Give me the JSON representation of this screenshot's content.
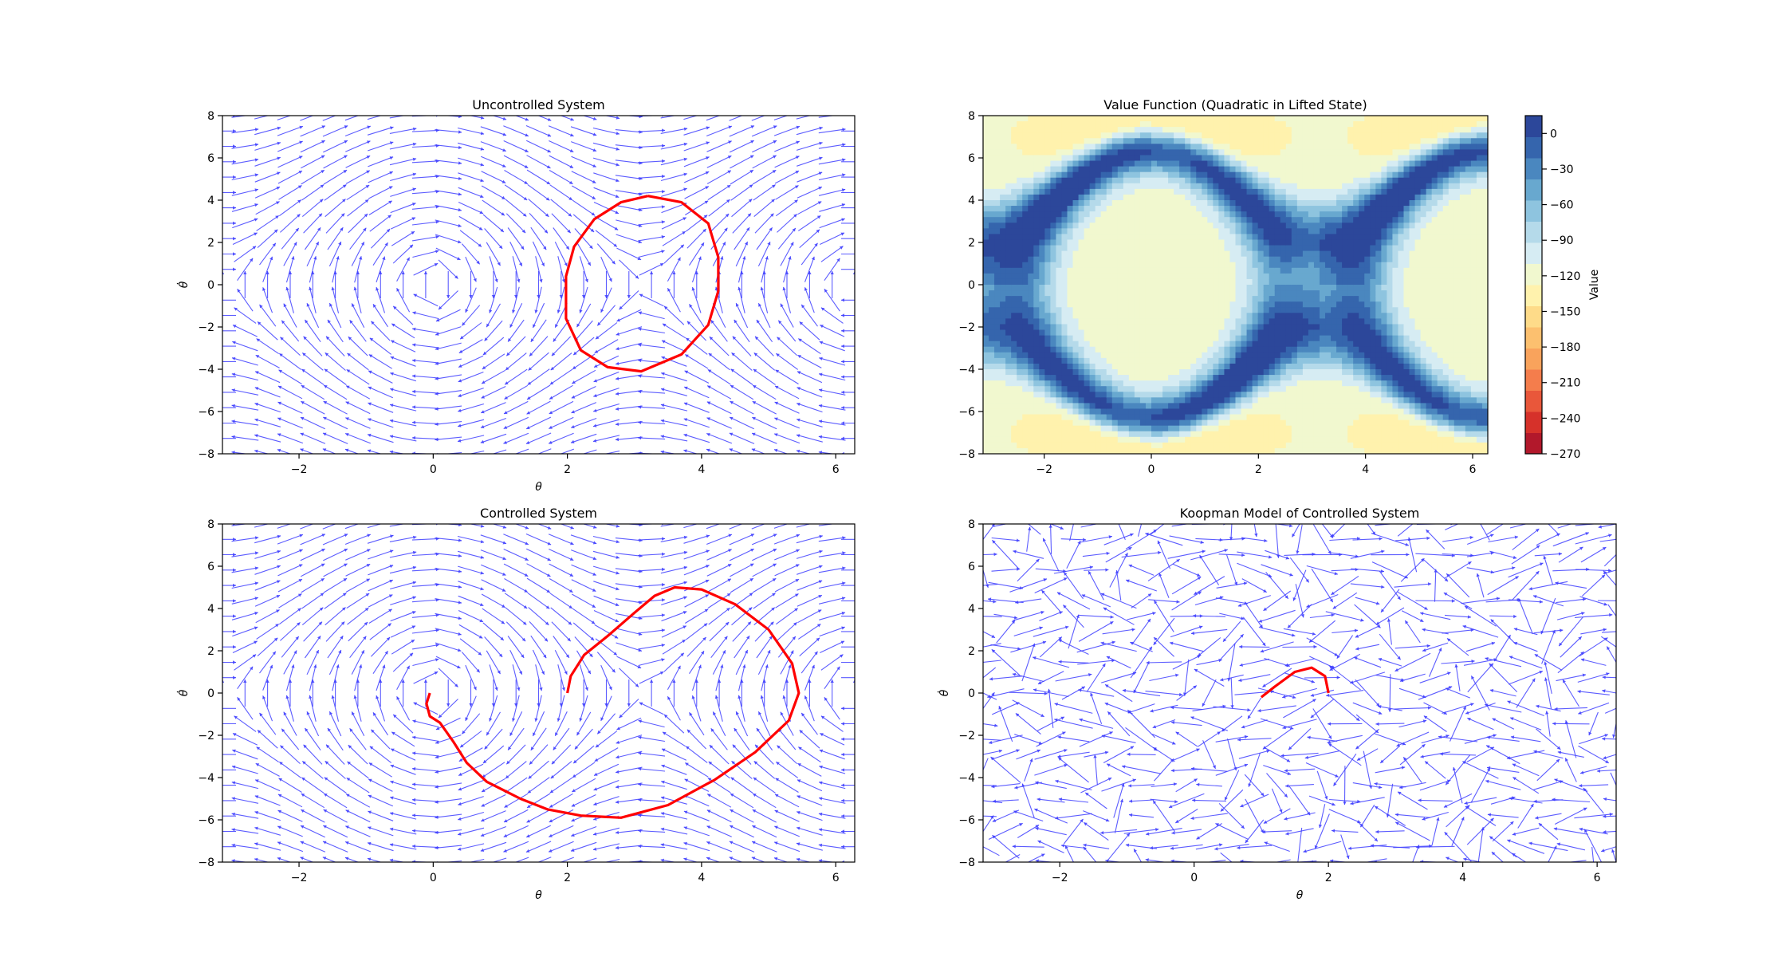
{
  "chart_data": [
    {
      "type": "quiver",
      "title": "Uncontrolled System",
      "xlabel": "θ",
      "ylabel": "θ̇",
      "xlim": [
        -3.14159,
        6.28318
      ],
      "ylim": [
        -8,
        8
      ],
      "xticks": [
        -2,
        0,
        2,
        4,
        6
      ],
      "yticks": [
        -8,
        -6,
        -4,
        -2,
        0,
        2,
        4,
        6,
        8
      ],
      "field": "pendulum",
      "arrow_color": "#4040ff",
      "trajectory_color": "#ff0000",
      "trajectory": [
        [
          3.2,
          4.2
        ],
        [
          3.7,
          3.9
        ],
        [
          4.1,
          2.9
        ],
        [
          4.25,
          1.3
        ],
        [
          4.25,
          -0.3
        ],
        [
          4.1,
          -1.9
        ],
        [
          3.7,
          -3.3
        ],
        [
          3.1,
          -4.1
        ],
        [
          2.6,
          -3.9
        ],
        [
          2.2,
          -3.1
        ],
        [
          1.98,
          -1.6
        ],
        [
          1.98,
          0.4
        ],
        [
          2.1,
          1.8
        ],
        [
          2.4,
          3.1
        ],
        [
          2.8,
          3.9
        ],
        [
          3.2,
          4.2
        ]
      ]
    },
    {
      "type": "heatmap",
      "title": "Value Function (Quadratic in Lifted State)",
      "xlabel": "",
      "ylabel": "",
      "xlim": [
        -3.14159,
        6.28318
      ],
      "ylim": [
        -8,
        8
      ],
      "xticks": [
        -2,
        0,
        2,
        4,
        6
      ],
      "yticks": [
        -8,
        -6,
        -4,
        -2,
        0,
        2,
        4,
        6,
        8
      ],
      "colorbar_label": "Value",
      "colorbar_range": [
        -270,
        15
      ],
      "colorbar_ticks": [
        0,
        -30,
        -60,
        -90,
        -120,
        -150,
        -180,
        -210,
        -240,
        -270
      ],
      "colormap": "RdYlBu"
    },
    {
      "type": "quiver",
      "title": "Controlled System",
      "xlabel": "θ",
      "ylabel": "θ̇",
      "xlim": [
        -3.14159,
        6.28318
      ],
      "ylim": [
        -8,
        8
      ],
      "xticks": [
        -2,
        0,
        2,
        4,
        6
      ],
      "yticks": [
        -8,
        -6,
        -4,
        -2,
        0,
        2,
        4,
        6,
        8
      ],
      "field": "pendulum",
      "arrow_color": "#4040ff",
      "trajectory_color": "#ff0000",
      "trajectory": [
        [
          2.0,
          0.0
        ],
        [
          2.05,
          0.8
        ],
        [
          2.25,
          1.8
        ],
        [
          2.6,
          2.7
        ],
        [
          3.0,
          3.8
        ],
        [
          3.3,
          4.6
        ],
        [
          3.6,
          5.0
        ],
        [
          4.0,
          4.9
        ],
        [
          4.5,
          4.2
        ],
        [
          5.0,
          3.0
        ],
        [
          5.35,
          1.4
        ],
        [
          5.45,
          0.0
        ],
        [
          5.3,
          -1.3
        ],
        [
          4.8,
          -2.8
        ],
        [
          4.2,
          -4.1
        ],
        [
          3.5,
          -5.3
        ],
        [
          2.8,
          -5.9
        ],
        [
          2.2,
          -5.8
        ],
        [
          1.7,
          -5.5
        ],
        [
          1.3,
          -5.0
        ],
        [
          0.8,
          -4.2
        ],
        [
          0.5,
          -3.3
        ],
        [
          0.3,
          -2.3
        ],
        [
          0.1,
          -1.4
        ],
        [
          -0.05,
          -1.1
        ],
        [
          -0.1,
          -0.5
        ],
        [
          -0.05,
          0.0
        ]
      ]
    },
    {
      "type": "quiver",
      "title": "Koopman Model of Controlled System",
      "xlabel": "θ",
      "ylabel": "θ̇",
      "xlim": [
        -3.14159,
        6.28318
      ],
      "ylim": [
        -8,
        8
      ],
      "xticks": [
        -2,
        0,
        2,
        4,
        6
      ],
      "yticks": [
        -8,
        -6,
        -4,
        -2,
        0,
        2,
        4,
        6,
        8
      ],
      "field": "koopman",
      "arrow_color": "#4040ff",
      "trajectory_color": "#ff0000",
      "trajectory": [
        [
          2.0,
          0.0
        ],
        [
          1.95,
          0.8
        ],
        [
          1.75,
          1.2
        ],
        [
          1.5,
          1.0
        ],
        [
          1.2,
          0.3
        ],
        [
          1.0,
          -0.2
        ]
      ]
    }
  ]
}
